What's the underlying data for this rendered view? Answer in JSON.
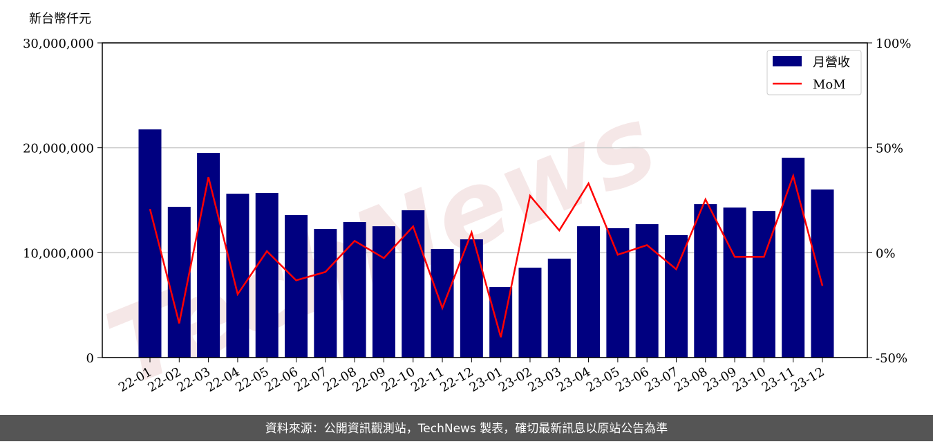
{
  "chart_data": {
    "type": "bar_line",
    "y_label": "新台幣仟元",
    "watermark": "TechNews",
    "footer": "資料來源：公開資訊觀測站，TechNews 製表，確切最新訊息以原站公告為準",
    "categories": [
      "22-01",
      "22-02",
      "22-03",
      "22-04",
      "22-05",
      "22-06",
      "22-07",
      "22-08",
      "22-09",
      "22-10",
      "22-11",
      "22-12",
      "23-01",
      "23-02",
      "23-03",
      "23-04",
      "23-05",
      "23-06",
      "23-07",
      "23-08",
      "23-09",
      "23-10",
      "23-11",
      "23-12"
    ],
    "series": [
      {
        "name": "月營收",
        "type": "bar",
        "color": "#000080",
        "values": [
          21750000,
          14370000,
          19510000,
          15620000,
          15690000,
          13580000,
          12260000,
          12920000,
          12520000,
          14040000,
          10350000,
          11270000,
          6720000,
          8570000,
          9430000,
          12520000,
          12330000,
          12720000,
          11670000,
          14630000,
          14300000,
          13970000,
          19050000,
          16020000
        ]
      },
      {
        "name": "MoM",
        "type": "line",
        "axis": "y2",
        "color": "#ff0000",
        "values": [
          20.8,
          -33.7,
          36,
          -19.8,
          0.7,
          -13.2,
          -9.2,
          5.6,
          -2.6,
          12.5,
          -26.4,
          9.6,
          -40.3,
          27.1,
          10.6,
          33,
          -1,
          3.6,
          -7.9,
          25.4,
          -2,
          -2,
          36.6,
          -15.8
        ]
      }
    ],
    "ylim": [
      0,
      30000000
    ],
    "yticks": [
      0,
      {
        "value": 10000000,
        "label": "10,000,000"
      },
      {
        "value": 20000000,
        "label": "20,000,000"
      },
      {
        "value": 30000000,
        "label": "30,000,000"
      }
    ],
    "y2lim": [
      -50,
      100
    ],
    "y2ticks": [
      {
        "value": -50,
        "label": "-50%"
      },
      {
        "value": 0,
        "label": "0%"
      },
      {
        "value": 50,
        "label": "50%"
      },
      {
        "value": 100,
        "label": "100%"
      }
    ],
    "grid": true,
    "legend": "upper right"
  }
}
